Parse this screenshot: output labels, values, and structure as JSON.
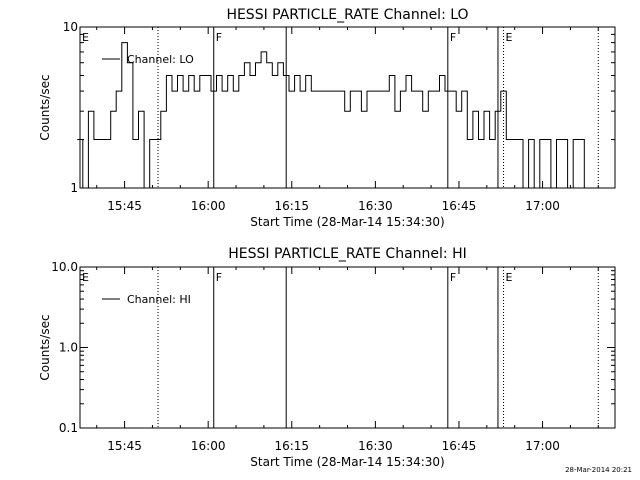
{
  "stamp": "28-Mar-2014 20:21",
  "chart_data": [
    {
      "type": "line",
      "title": "HESSI PARTICLE_RATE Channel: LO",
      "xlabel": "Start Time (28-Mar-14 15:34:30)",
      "ylabel": "Counts/sec",
      "yscale": "log",
      "x_unit": "time HH:MM",
      "xlim": [
        "15:37",
        "17:13"
      ],
      "ylim": [
        1,
        10
      ],
      "x_ticks": [
        "15:45",
        "16:00",
        "16:15",
        "16:30",
        "16:45",
        "17:00"
      ],
      "y_ticks": [
        "1",
        "10"
      ],
      "legend": {
        "entries": [
          "Channel: LO"
        ],
        "position": "top-left"
      },
      "grid": false,
      "markers": [
        {
          "time": "15:37",
          "label": "E",
          "style": "dotted"
        },
        {
          "time": "15:51",
          "label": "",
          "style": "dotted"
        },
        {
          "time": "16:01",
          "label": "F",
          "style": "solid"
        },
        {
          "time": "16:14",
          "label": "",
          "style": "solid"
        },
        {
          "time": "16:43",
          "label": "F",
          "style": "solid"
        },
        {
          "time": "16:52",
          "label": "",
          "style": "solid"
        },
        {
          "time": "16:53",
          "label": "E",
          "style": "dotted"
        },
        {
          "time": "17:10",
          "label": "",
          "style": "dotted"
        }
      ],
      "series": [
        {
          "name": "Channel: LO",
          "points": [
            [
              "15:37",
              2
            ],
            [
              "15:38",
              1
            ],
            [
              "15:39",
              3
            ],
            [
              "15:40",
              2
            ],
            [
              "15:41",
              2
            ],
            [
              "15:42",
              2
            ],
            [
              "15:43",
              3
            ],
            [
              "15:44",
              4
            ],
            [
              "15:45",
              8
            ],
            [
              "15:46",
              6
            ],
            [
              "15:47",
              2
            ],
            [
              "15:48",
              3
            ],
            [
              "15:49",
              1
            ],
            [
              "15:50",
              2
            ],
            [
              "15:51",
              2
            ],
            [
              "15:52",
              3
            ],
            [
              "15:53",
              5
            ],
            [
              "15:54",
              4
            ],
            [
              "15:55",
              5
            ],
            [
              "15:56",
              4
            ],
            [
              "15:57",
              5
            ],
            [
              "15:58",
              4
            ],
            [
              "15:59",
              5
            ],
            [
              "16:00",
              5
            ],
            [
              "16:01",
              4
            ],
            [
              "16:02",
              5
            ],
            [
              "16:03",
              4
            ],
            [
              "16:04",
              5
            ],
            [
              "16:05",
              4
            ],
            [
              "16:06",
              5
            ],
            [
              "16:07",
              6
            ],
            [
              "16:08",
              5
            ],
            [
              "16:09",
              6
            ],
            [
              "16:10",
              7
            ],
            [
              "16:11",
              6
            ],
            [
              "16:12",
              5
            ],
            [
              "16:13",
              6
            ],
            [
              "16:14",
              5
            ],
            [
              "16:15",
              4
            ],
            [
              "16:16",
              5
            ],
            [
              "16:17",
              4
            ],
            [
              "16:18",
              5
            ],
            [
              "16:19",
              4
            ],
            [
              "16:20",
              4
            ],
            [
              "16:21",
              4
            ],
            [
              "16:22",
              4
            ],
            [
              "16:23",
              4
            ],
            [
              "16:24",
              4
            ],
            [
              "16:25",
              3
            ],
            [
              "16:26",
              4
            ],
            [
              "16:27",
              4
            ],
            [
              "16:28",
              3
            ],
            [
              "16:29",
              4
            ],
            [
              "16:30",
              4
            ],
            [
              "16:31",
              4
            ],
            [
              "16:32",
              4
            ],
            [
              "16:33",
              5
            ],
            [
              "16:34",
              3
            ],
            [
              "16:35",
              4
            ],
            [
              "16:36",
              5
            ],
            [
              "16:37",
              4
            ],
            [
              "16:38",
              4
            ],
            [
              "16:39",
              3
            ],
            [
              "16:40",
              4
            ],
            [
              "16:41",
              4
            ],
            [
              "16:42",
              5
            ],
            [
              "16:43",
              4
            ],
            [
              "16:44",
              4
            ],
            [
              "16:45",
              3
            ],
            [
              "16:46",
              4
            ],
            [
              "16:47",
              2
            ],
            [
              "16:48",
              3
            ],
            [
              "16:49",
              2
            ],
            [
              "16:50",
              3
            ],
            [
              "16:51",
              2
            ],
            [
              "16:52",
              3
            ],
            [
              "16:53",
              4
            ],
            [
              "16:54",
              2
            ],
            [
              "16:55",
              2
            ],
            [
              "16:56",
              2
            ],
            [
              "16:57",
              1
            ],
            [
              "16:58",
              2
            ],
            [
              "16:59",
              1
            ],
            [
              "17:00",
              2
            ],
            [
              "17:01",
              2
            ],
            [
              "17:02",
              1
            ],
            [
              "17:03",
              2
            ],
            [
              "17:04",
              2
            ],
            [
              "17:05",
              1
            ],
            [
              "17:06",
              2
            ],
            [
              "17:07",
              2
            ],
            [
              "17:08",
              1
            ],
            [
              "17:09",
              1
            ]
          ]
        }
      ]
    },
    {
      "type": "line",
      "title": "HESSI PARTICLE_RATE Channel: HI",
      "xlabel": "Start Time (28-Mar-14 15:34:30)",
      "ylabel": "Counts/sec",
      "yscale": "log",
      "x_unit": "time HH:MM",
      "xlim": [
        "15:37",
        "17:13"
      ],
      "ylim": [
        0.1,
        10
      ],
      "x_ticks": [
        "15:45",
        "16:00",
        "16:15",
        "16:30",
        "16:45",
        "17:00"
      ],
      "y_ticks": [
        "0.1",
        "1.0",
        "10.0"
      ],
      "legend": {
        "entries": [
          "Channel: HI"
        ],
        "position": "top-left"
      },
      "grid": false,
      "markers": [
        {
          "time": "15:37",
          "label": "E",
          "style": "dotted"
        },
        {
          "time": "15:51",
          "label": "",
          "style": "dotted"
        },
        {
          "time": "16:01",
          "label": "F",
          "style": "solid"
        },
        {
          "time": "16:14",
          "label": "",
          "style": "solid"
        },
        {
          "time": "16:43",
          "label": "F",
          "style": "solid"
        },
        {
          "time": "16:52",
          "label": "",
          "style": "solid"
        },
        {
          "time": "16:53",
          "label": "E",
          "style": "dotted"
        },
        {
          "time": "17:10",
          "label": "",
          "style": "dotted"
        }
      ],
      "series": [
        {
          "name": "Channel: HI",
          "points": []
        }
      ]
    }
  ]
}
